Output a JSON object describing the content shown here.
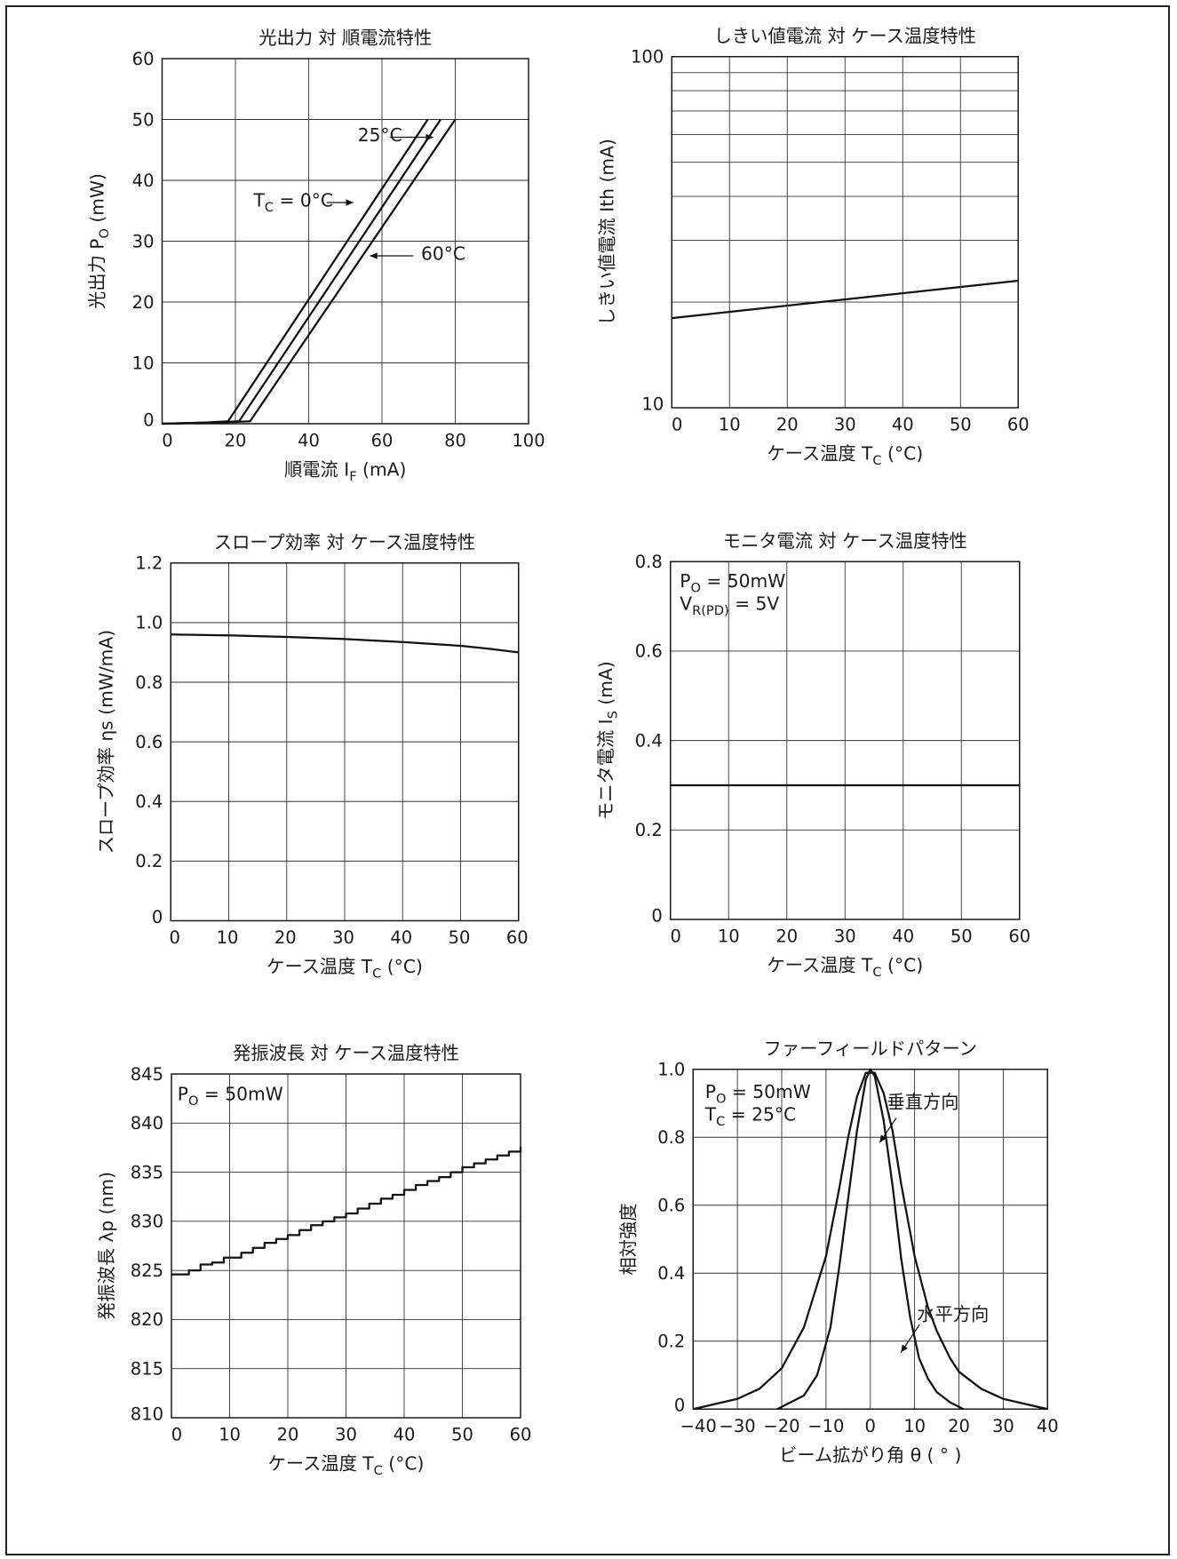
{
  "chart_data": [
    {
      "type": "line",
      "title": "光出力 対 順電流特性",
      "xlabel": "順電流 I_F (mA)",
      "ylabel": "光出力 P_O (mW)",
      "xlim": [
        0,
        100
      ],
      "ylim": [
        0,
        60
      ],
      "x_ticks": [
        0,
        20,
        40,
        60,
        80,
        100
      ],
      "y_ticks": [
        0,
        10,
        20,
        30,
        40,
        50,
        60
      ],
      "grid": true,
      "series": [
        {
          "name": "T_C = 0°C",
          "points": [
            [
              0,
              0
            ],
            [
              12,
              0.2
            ],
            [
              18,
              0.4
            ],
            [
              72.5,
              50
            ]
          ]
        },
        {
          "name": "25°C",
          "points": [
            [
              0,
              0
            ],
            [
              14,
              0.2
            ],
            [
              21,
              0.4
            ],
            [
              76,
              50
            ]
          ]
        },
        {
          "name": "60°C",
          "points": [
            [
              0,
              0
            ],
            [
              16,
              0.2
            ],
            [
              24,
              0.4
            ],
            [
              80,
              50
            ]
          ]
        }
      ],
      "annotations": [
        {
          "text": "25°C",
          "target_series": "25°C"
        },
        {
          "text": "T_C = 0°C",
          "target_series": "T_C = 0°C"
        },
        {
          "text": "60°C",
          "target_series": "60°C"
        }
      ]
    },
    {
      "type": "line",
      "title": "しきい値電流 対 ケース温度特性",
      "xlabel": "ケース温度 T_C (°C)",
      "ylabel": "しきい値電流 Ith (mA)",
      "xlim": [
        0,
        60
      ],
      "ylim": [
        10,
        100
      ],
      "yscale": "log",
      "x_ticks": [
        0,
        10,
        20,
        30,
        40,
        50,
        60
      ],
      "y_ticks": [
        10,
        100
      ],
      "grid": true,
      "series": [
        {
          "points": [
            [
              0,
              18
            ],
            [
              60,
              23
            ]
          ]
        }
      ]
    },
    {
      "type": "line",
      "title": "スロープ効率 対 ケース温度特性",
      "xlabel": "ケース温度 T_C (°C)",
      "ylabel": "スロープ効率 ηs (mW/mA)",
      "xlim": [
        0,
        60
      ],
      "ylim": [
        0,
        1.2
      ],
      "x_ticks": [
        0,
        10,
        20,
        30,
        40,
        50,
        60
      ],
      "y_ticks": [
        0,
        0.2,
        0.4,
        0.6,
        0.8,
        1.0,
        1.2
      ],
      "grid": true,
      "series": [
        {
          "points": [
            [
              0,
              0.96
            ],
            [
              10,
              0.957
            ],
            [
              20,
              0.952
            ],
            [
              30,
              0.945
            ],
            [
              40,
              0.935
            ],
            [
              50,
              0.922
            ],
            [
              55,
              0.912
            ],
            [
              60,
              0.9
            ]
          ]
        }
      ]
    },
    {
      "type": "line",
      "title": "モニタ電流 対 ケース温度特性",
      "xlabel": "ケース温度 T_C (°C)",
      "ylabel": "モニタ電流 I_S (mA)",
      "xlim": [
        0,
        60
      ],
      "ylim": [
        0,
        0.8
      ],
      "x_ticks": [
        0,
        10,
        20,
        30,
        40,
        50,
        60
      ],
      "y_ticks": [
        0,
        0.2,
        0.4,
        0.6,
        0.8
      ],
      "grid": true,
      "conditions": [
        "P_O = 50mW",
        "V_R(PD) = 5V"
      ],
      "series": [
        {
          "points": [
            [
              0,
              0.3
            ],
            [
              60,
              0.3
            ]
          ]
        }
      ]
    },
    {
      "type": "line",
      "title": "発振波長 対 ケース温度特性",
      "xlabel": "ケース温度 T_C (°C)",
      "ylabel": "発振波長 λp (nm)",
      "xlim": [
        0,
        60
      ],
      "ylim": [
        810,
        845
      ],
      "x_ticks": [
        0,
        10,
        20,
        30,
        40,
        50,
        60
      ],
      "y_ticks": [
        810,
        815,
        820,
        825,
        830,
        835,
        840,
        845
      ],
      "grid": true,
      "conditions": [
        "P_O = 50mW"
      ],
      "series": [
        {
          "step": true,
          "points": [
            [
              0,
              824.6
            ],
            [
              3,
              825
            ],
            [
              5,
              825.6
            ],
            [
              7,
              825.8
            ],
            [
              9,
              826.3
            ],
            [
              12,
              826.8
            ],
            [
              14,
              827.3
            ],
            [
              16,
              827.8
            ],
            [
              18,
              828.2
            ],
            [
              20,
              828.6
            ],
            [
              22,
              829.1
            ],
            [
              24,
              829.6
            ],
            [
              26,
              830
            ],
            [
              28,
              830.4
            ],
            [
              30,
              830.8
            ],
            [
              32,
              831.3
            ],
            [
              34,
              831.8
            ],
            [
              36,
              832.3
            ],
            [
              38,
              832.7
            ],
            [
              40,
              833.2
            ],
            [
              42,
              833.7
            ],
            [
              44,
              834.1
            ],
            [
              46,
              834.5
            ],
            [
              48,
              835
            ],
            [
              50,
              835.5
            ],
            [
              52,
              835.9
            ],
            [
              54,
              836.3
            ],
            [
              56,
              836.7
            ],
            [
              58,
              837.1
            ],
            [
              60,
              837.6
            ]
          ]
        }
      ]
    },
    {
      "type": "line",
      "title": "ファーフィールドパターン",
      "xlabel": "ビーム拡がり角 θ ( ° )",
      "ylabel": "相対強度",
      "xlim": [
        -40,
        40
      ],
      "ylim": [
        0,
        1.0
      ],
      "x_ticks": [
        -40,
        -30,
        -20,
        -10,
        0,
        10,
        20,
        30,
        40
      ],
      "y_ticks": [
        0,
        0.2,
        0.4,
        0.6,
        0.8,
        1.0
      ],
      "grid": true,
      "conditions": [
        "P_O = 50mW",
        "T_C = 25°C"
      ],
      "series": [
        {
          "name": "垂直方向",
          "points": [
            [
              -40,
              0
            ],
            [
              -30,
              0.03
            ],
            [
              -25,
              0.06
            ],
            [
              -20,
              0.12
            ],
            [
              -15,
              0.24
            ],
            [
              -10,
              0.45
            ],
            [
              -7,
              0.65
            ],
            [
              -5,
              0.8
            ],
            [
              -3,
              0.92
            ],
            [
              -1,
              0.99
            ],
            [
              1,
              0.99
            ],
            [
              3,
              0.93
            ],
            [
              5,
              0.82
            ],
            [
              7,
              0.66
            ],
            [
              10,
              0.45
            ],
            [
              13,
              0.3
            ],
            [
              15,
              0.23
            ],
            [
              18,
              0.15
            ],
            [
              20,
              0.11
            ],
            [
              25,
              0.06
            ],
            [
              30,
              0.03
            ],
            [
              35,
              0.015
            ],
            [
              40,
              0
            ]
          ]
        },
        {
          "name": "水平方向",
          "points": [
            [
              -21,
              0
            ],
            [
              -15,
              0.04
            ],
            [
              -12,
              0.1
            ],
            [
              -9,
              0.24
            ],
            [
              -7,
              0.42
            ],
            [
              -5,
              0.62
            ],
            [
              -3,
              0.82
            ],
            [
              -1,
              0.97
            ],
            [
              0,
              1.0
            ],
            [
              1,
              0.98
            ],
            [
              3,
              0.85
            ],
            [
              5,
              0.66
            ],
            [
              7,
              0.44
            ],
            [
              9,
              0.27
            ],
            [
              11,
              0.15
            ],
            [
              13,
              0.09
            ],
            [
              15,
              0.05
            ],
            [
              18,
              0.02
            ],
            [
              21,
              0
            ]
          ]
        }
      ],
      "annotations": [
        {
          "text": "垂直方向",
          "target_series": "垂直方向"
        },
        {
          "text": "水平方向",
          "target_series": "水平方向"
        }
      ]
    }
  ]
}
